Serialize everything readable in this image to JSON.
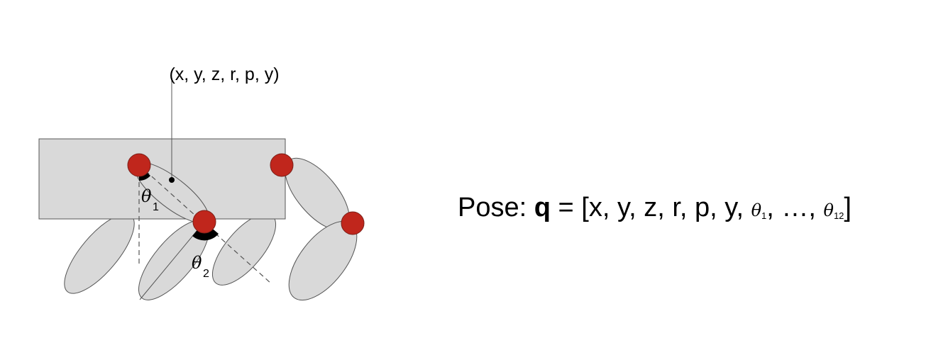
{
  "base_pose_label": "(x, y, z, r, p, y)",
  "theta1": {
    "symbol": "θ",
    "index": "1"
  },
  "theta2": {
    "symbol": "θ",
    "index": "2"
  },
  "pose": {
    "prefix": "Pose: ",
    "q": "q",
    "equals_open": " = [",
    "vars": "x, y, z, r, p, y, ",
    "theta_symbol": "θ",
    "first_index": "1",
    "ellipsis": ", …, ",
    "last_index": "12",
    "close": "]"
  },
  "colors": {
    "body": "#d9d9d9",
    "joint": "#c0261c",
    "outline": "#555555"
  }
}
